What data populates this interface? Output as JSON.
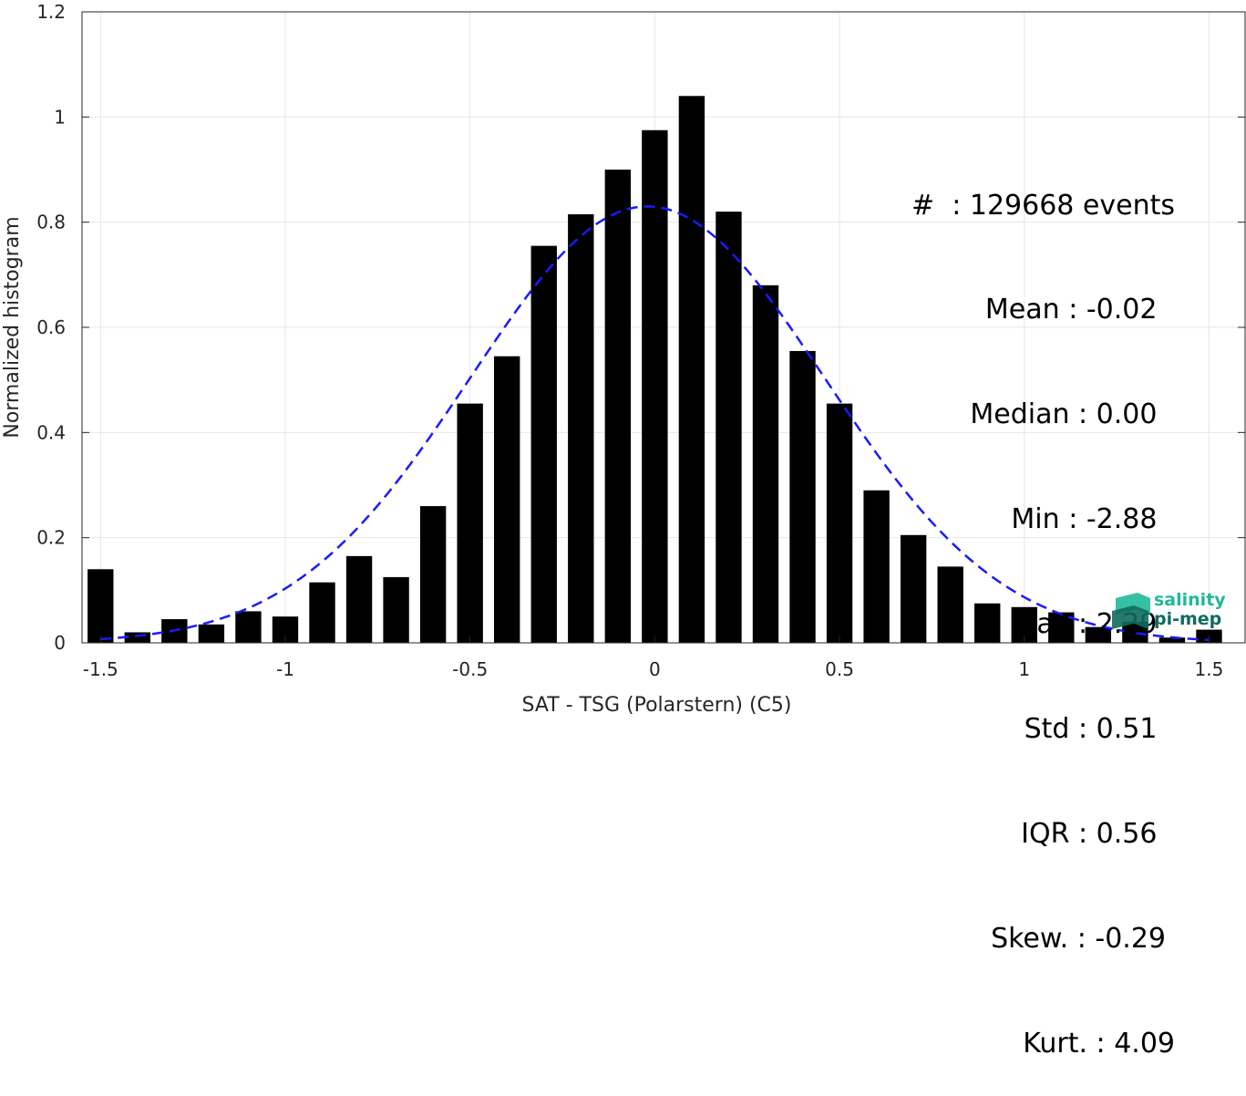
{
  "chart_data": {
    "type": "bar",
    "xlabel": "SAT - TSG (Polarstern) (C5)",
    "ylabel": "Normalized histogram",
    "xlim": [
      -1.55,
      1.6
    ],
    "ylim": [
      0,
      1.2
    ],
    "xticks": [
      -1.5,
      -1,
      -0.5,
      0,
      0.5,
      1,
      1.5
    ],
    "xtick_labels": [
      "-1.5",
      "-1",
      "-0.5",
      "0",
      "0.5",
      "1",
      "1.5"
    ],
    "yticks": [
      0,
      0.2,
      0.4,
      0.6,
      0.8,
      1,
      1.2
    ],
    "ytick_labels": [
      "0",
      "0.2",
      "0.4",
      "0.6",
      "0.8",
      "1",
      "1.2"
    ],
    "grid": true,
    "bars": {
      "x": [
        -1.5,
        -1.4,
        -1.3,
        -1.2,
        -1.1,
        -1.0,
        -0.9,
        -0.8,
        -0.7,
        -0.6,
        -0.5,
        -0.4,
        -0.3,
        -0.2,
        -0.1,
        0.0,
        0.1,
        0.2,
        0.3,
        0.4,
        0.5,
        0.6,
        0.7,
        0.8,
        0.9,
        1.0,
        1.1,
        1.2,
        1.3,
        1.4,
        1.5
      ],
      "values": [
        0.14,
        0.02,
        0.045,
        0.035,
        0.06,
        0.05,
        0.115,
        0.165,
        0.125,
        0.26,
        0.455,
        0.545,
        0.755,
        0.815,
        0.9,
        0.975,
        1.04,
        0.82,
        0.68,
        0.555,
        0.455,
        0.29,
        0.205,
        0.145,
        0.075,
        0.068,
        0.058,
        0.03,
        0.04,
        0.01,
        0.025
      ],
      "width": 0.07,
      "color": "#000000"
    },
    "fit_curve": {
      "type": "gaussian",
      "mean": -0.02,
      "std": 0.48,
      "peak": 0.83,
      "xrange": [
        -1.5,
        1.5
      ],
      "color": "#1a1aff",
      "style": "dashed"
    }
  },
  "stats": [
    "#  : 129668 events",
    "Mean : -0.02 ",
    "Median : 0.00 ",
    "Min : -2.88 ",
    "Max : 2.29 ",
    "Std : 0.51 ",
    "IQR : 0.56 ",
    "Skew. : -0.29",
    "Kurt. : 4.09"
  ],
  "logo": {
    "line1": "salinity",
    "line2": "pi-mep",
    "colors": {
      "primary": "#1fb89a",
      "dark": "#0f6b5e"
    }
  }
}
